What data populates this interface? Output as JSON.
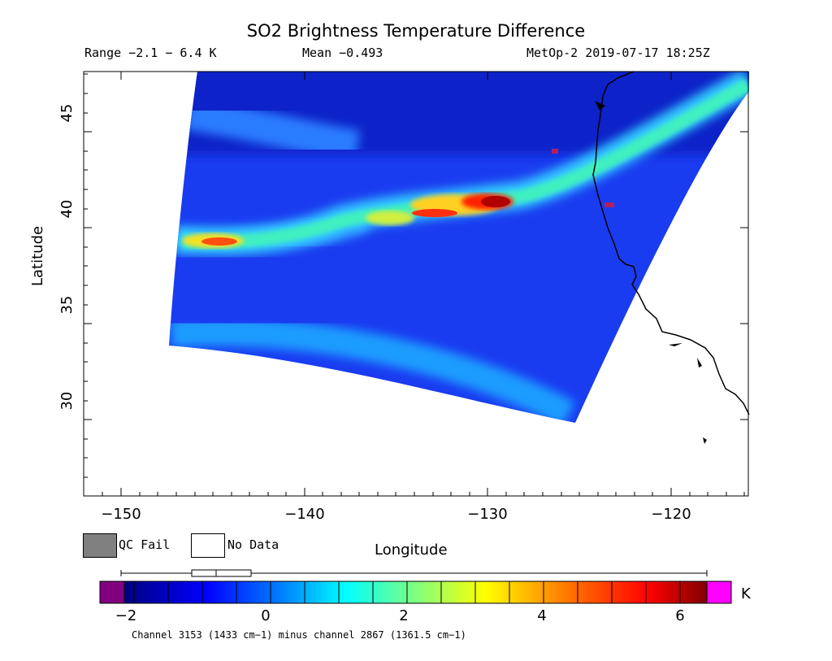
{
  "title": "SO2 Brightness Temperature Difference",
  "header": {
    "range": "Range −2.1 − 6.4 K",
    "mean": "Mean −0.493",
    "satellite": "MetOp-2 2019-07-17 18:25Z"
  },
  "axes": {
    "xlabel": "Longitude",
    "ylabel": "Latitude",
    "xticks": [
      "−150",
      "−140",
      "−130",
      "−120"
    ],
    "yticks": [
      "30",
      "35",
      "40",
      "45"
    ],
    "xlim": [
      -152,
      -116
    ],
    "ylim": [
      26,
      48
    ]
  },
  "legend": {
    "qc_fail": "QC Fail",
    "no_data": "No Data",
    "qc_color": "#808080"
  },
  "colorbar": {
    "ticks": [
      "−2",
      "0",
      "2",
      "4",
      "6"
    ],
    "unit": "K",
    "range": [
      -2.1,
      6.4
    ],
    "below_color": "#800080",
    "above_color": "#ff00ff"
  },
  "footnote": "Channel 3153 (1433 cm−1) minus channel 2867 (1361.5 cm−1)",
  "chart_data": {
    "type": "heatmap",
    "variable": "SO2 Brightness Temperature Difference",
    "units": "K",
    "plume_features": [
      {
        "lon": -129.5,
        "lat": 41.5,
        "value": 6.2
      },
      {
        "lon": -133.5,
        "lat": 40.8,
        "value": 5.0
      },
      {
        "lon": -145,
        "lat": 39.3,
        "value": 4.8
      },
      {
        "lon": -136,
        "lat": 40.5,
        "value": 3.0
      },
      {
        "lon": -124.5,
        "lat": 43.0,
        "value": 2.5
      },
      {
        "lon": -120,
        "lat": 46.0,
        "value": 1.5
      }
    ],
    "background_value": -0.5,
    "swath_corners": {
      "top_left": [
        -146,
        48
      ],
      "top_right": [
        -116,
        48
      ],
      "bottom_left": [
        -147.5,
        34
      ],
      "bottom_right": [
        -125.5,
        29.8
      ]
    }
  }
}
